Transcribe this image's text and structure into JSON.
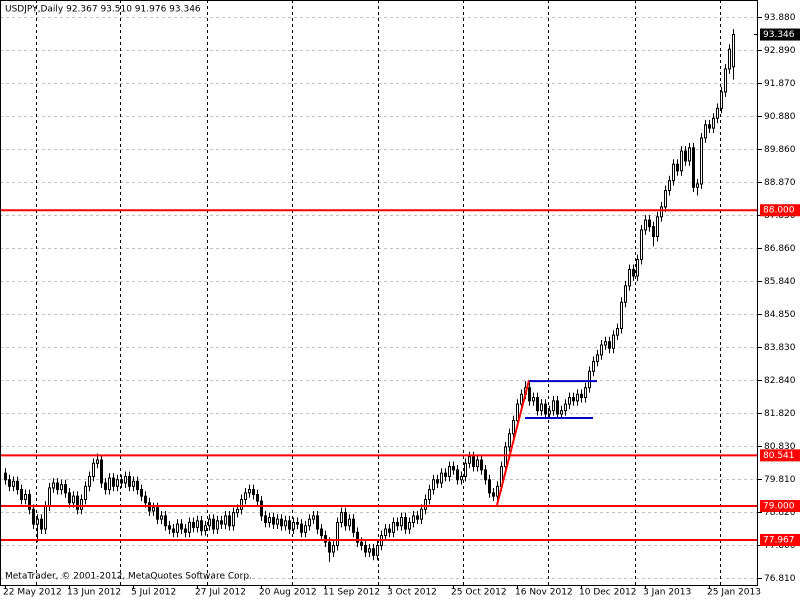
{
  "chart_data": {
    "type": "candlestick",
    "title": "USDJPY,Daily  92.367 93.510 91.976 93.346",
    "watermark": "MetaTrader, © 2001-2012, MetaQuotes Software Corp.",
    "ylim": [
      76.597,
      94.397
    ],
    "yticks": [
      {
        "value": 93.88,
        "label": "93.880"
      },
      {
        "value": 92.89,
        "label": "92.890"
      },
      {
        "value": 91.87,
        "label": "91.870"
      },
      {
        "value": 90.88,
        "label": "90.880"
      },
      {
        "value": 89.86,
        "label": "89.860"
      },
      {
        "value": 88.87,
        "label": "88.870"
      },
      {
        "value": 87.85,
        "label": "87.850"
      },
      {
        "value": 86.86,
        "label": "86.860"
      },
      {
        "value": 85.84,
        "label": "85.840"
      },
      {
        "value": 84.85,
        "label": "84.850"
      },
      {
        "value": 83.83,
        "label": "83.830"
      },
      {
        "value": 82.84,
        "label": "82.840"
      },
      {
        "value": 81.82,
        "label": "81.820"
      },
      {
        "value": 80.83,
        "label": "80.830"
      },
      {
        "value": 79.81,
        "label": "79.810"
      },
      {
        "value": 78.82,
        "label": "78.820"
      },
      {
        "value": 77.8,
        "label": "77.800"
      },
      {
        "value": 76.81,
        "label": "76.810"
      }
    ],
    "grid": true,
    "up_color": "#ffffff",
    "down_color": "#000000",
    "wick_color": "#000000",
    "hlines": [
      {
        "value": 88,
        "label": "88.000",
        "color": "#ff0000"
      },
      {
        "value": 80.541,
        "label": "80.541",
        "color": "#ff0000"
      },
      {
        "value": 79,
        "label": "79.000",
        "color": "#ff0000"
      },
      {
        "value": 77.967,
        "label": "77.967",
        "color": "#ff0000"
      }
    ],
    "current_price": {
      "value": 93.346,
      "label": "93.346"
    },
    "trendlines": [
      {
        "color": "#ff0000",
        "x": [
          123,
          131
        ],
        "y": [
          79.03,
          82.83
        ]
      },
      {
        "color": "#0000cc",
        "x": [
          131,
          148
        ],
        "y": [
          82.8,
          82.8
        ]
      },
      {
        "color": "#0000cc",
        "x": [
          130,
          147
        ],
        "y": [
          81.68,
          81.68
        ]
      }
    ],
    "categories": [
      "22 May 2012",
      null,
      null,
      null,
      null,
      null,
      null,
      null,
      null,
      null,
      null,
      null,
      null,
      null,
      null,
      null,
      "13 Jun 2012",
      null,
      null,
      null,
      null,
      null,
      null,
      null,
      null,
      null,
      null,
      null,
      null,
      null,
      null,
      null,
      "5 Jul 2012",
      null,
      null,
      null,
      null,
      null,
      null,
      null,
      null,
      null,
      null,
      null,
      null,
      null,
      null,
      null,
      "27 Jul 2012",
      null,
      null,
      null,
      null,
      null,
      null,
      null,
      null,
      null,
      null,
      null,
      null,
      null,
      null,
      null,
      "20 Aug 2012",
      null,
      null,
      null,
      null,
      null,
      null,
      null,
      null,
      null,
      null,
      null,
      null,
      null,
      null,
      null,
      "11 Sep 2012",
      null,
      null,
      null,
      null,
      null,
      null,
      null,
      null,
      null,
      null,
      null,
      null,
      null,
      null,
      null,
      "3 Oct 2012",
      null,
      null,
      null,
      null,
      null,
      null,
      null,
      null,
      null,
      null,
      null,
      null,
      null,
      null,
      null,
      "25 Oct 2012",
      null,
      null,
      null,
      null,
      null,
      null,
      null,
      null,
      null,
      null,
      null,
      null,
      null,
      null,
      null,
      "16 Nov 2012",
      null,
      null,
      null,
      null,
      null,
      null,
      null,
      null,
      null,
      null,
      null,
      null,
      null,
      null,
      null,
      "10 Dec 2012",
      null,
      null,
      null,
      null,
      null,
      null,
      null,
      null,
      null,
      null,
      null,
      null,
      null,
      null,
      null,
      "3 Jan 2013",
      null,
      null,
      null,
      null,
      null,
      null,
      null,
      null,
      null,
      null,
      null,
      null,
      null,
      null,
      null,
      "25 Jan 2013",
      null,
      null,
      null,
      null,
      null,
      null
    ],
    "candles": [
      [
        80.0,
        80.15,
        79.65,
        79.8
      ],
      [
        79.8,
        79.95,
        79.45,
        79.6
      ],
      [
        79.6,
        79.9,
        79.45,
        79.75
      ],
      [
        79.75,
        79.9,
        79.35,
        79.5
      ],
      [
        79.5,
        79.65,
        79.05,
        79.2
      ],
      [
        79.2,
        79.5,
        79.05,
        79.35
      ],
      [
        79.35,
        79.5,
        78.75,
        78.9
      ],
      [
        78.9,
        79.05,
        78.3,
        78.45
      ],
      [
        78.45,
        78.75,
        77.9,
        78.6
      ],
      [
        78.6,
        78.75,
        78.15,
        78.3
      ],
      [
        78.3,
        79.15,
        78.15,
        79.0
      ],
      [
        79.0,
        79.7,
        78.85,
        79.55
      ],
      [
        79.55,
        79.85,
        79.4,
        79.7
      ],
      [
        79.7,
        79.85,
        79.35,
        79.5
      ],
      [
        79.5,
        79.8,
        79.35,
        79.65
      ],
      [
        79.65,
        79.8,
        79.25,
        79.4
      ],
      [
        79.4,
        79.55,
        78.95,
        79.1
      ],
      [
        79.1,
        79.45,
        78.95,
        79.3
      ],
      [
        79.3,
        79.45,
        78.75,
        78.9
      ],
      [
        78.9,
        79.35,
        78.75,
        79.2
      ],
      [
        79.2,
        79.75,
        79.05,
        79.6
      ],
      [
        79.6,
        80.05,
        79.45,
        79.9
      ],
      [
        79.9,
        80.45,
        79.75,
        80.3
      ],
      [
        80.3,
        80.6,
        80.15,
        80.4
      ],
      [
        80.4,
        80.55,
        79.55,
        79.7
      ],
      [
        79.7,
        79.85,
        79.35,
        79.5
      ],
      [
        79.5,
        80.0,
        79.35,
        79.85
      ],
      [
        79.85,
        80.0,
        79.45,
        79.6
      ],
      [
        79.6,
        79.95,
        79.45,
        79.8
      ],
      [
        79.8,
        79.95,
        79.55,
        79.7
      ],
      [
        79.7,
        80.05,
        79.55,
        79.9
      ],
      [
        79.9,
        80.05,
        79.45,
        79.6
      ],
      [
        79.6,
        79.9,
        79.45,
        79.75
      ],
      [
        79.75,
        79.9,
        79.35,
        79.5
      ],
      [
        79.5,
        79.65,
        79.15,
        79.3
      ],
      [
        79.3,
        79.45,
        78.95,
        79.1
      ],
      [
        79.1,
        79.25,
        78.7,
        78.85
      ],
      [
        78.85,
        79.1,
        78.7,
        78.95
      ],
      [
        78.95,
        79.1,
        78.45,
        78.6
      ],
      [
        78.6,
        78.85,
        78.45,
        78.7
      ],
      [
        78.7,
        78.85,
        78.25,
        78.4
      ],
      [
        78.4,
        78.55,
        78.15,
        78.3
      ],
      [
        78.3,
        78.45,
        78.05,
        78.2
      ],
      [
        78.2,
        78.6,
        78.05,
        78.45
      ],
      [
        78.45,
        78.6,
        78.15,
        78.3
      ],
      [
        78.3,
        78.45,
        78.05,
        78.2
      ],
      [
        78.2,
        78.65,
        78.05,
        78.5
      ],
      [
        78.5,
        78.65,
        78.2,
        78.35
      ],
      [
        78.35,
        78.7,
        78.2,
        78.55
      ],
      [
        78.55,
        78.7,
        78.1,
        78.25
      ],
      [
        78.25,
        78.55,
        78.1,
        78.4
      ],
      [
        78.4,
        78.75,
        78.25,
        78.6
      ],
      [
        78.6,
        78.75,
        78.15,
        78.3
      ],
      [
        78.3,
        78.7,
        78.15,
        78.55
      ],
      [
        78.55,
        78.7,
        78.3,
        78.45
      ],
      [
        78.45,
        78.85,
        78.3,
        78.7
      ],
      [
        78.7,
        78.85,
        78.25,
        78.4
      ],
      [
        78.4,
        78.95,
        78.25,
        78.8
      ],
      [
        78.8,
        79.05,
        78.65,
        78.9
      ],
      [
        78.9,
        79.35,
        78.75,
        79.2
      ],
      [
        79.2,
        79.55,
        79.05,
        79.4
      ],
      [
        79.4,
        79.65,
        79.25,
        79.5
      ],
      [
        79.5,
        79.65,
        79.2,
        79.35
      ],
      [
        79.35,
        79.5,
        79.0,
        79.15
      ],
      [
        79.15,
        79.3,
        78.55,
        78.7
      ],
      [
        78.7,
        78.85,
        78.35,
        78.5
      ],
      [
        78.5,
        78.8,
        78.35,
        78.65
      ],
      [
        78.65,
        78.8,
        78.3,
        78.45
      ],
      [
        78.45,
        78.75,
        78.3,
        78.6
      ],
      [
        78.6,
        78.75,
        78.25,
        78.4
      ],
      [
        78.4,
        78.7,
        78.25,
        78.55
      ],
      [
        78.55,
        78.7,
        78.15,
        78.3
      ],
      [
        78.3,
        78.65,
        78.15,
        78.5
      ],
      [
        78.5,
        78.65,
        78.3,
        78.45
      ],
      [
        78.45,
        78.6,
        78.05,
        78.2
      ],
      [
        78.2,
        78.55,
        78.05,
        78.4
      ],
      [
        78.4,
        78.75,
        78.25,
        78.6
      ],
      [
        78.6,
        78.85,
        78.45,
        78.7
      ],
      [
        78.7,
        78.85,
        78.15,
        78.3
      ],
      [
        78.3,
        78.45,
        77.95,
        78.1
      ],
      [
        78.1,
        78.25,
        77.75,
        77.9
      ],
      [
        77.9,
        78.05,
        77.3,
        77.6
      ],
      [
        77.6,
        77.95,
        77.45,
        77.8
      ],
      [
        77.8,
        78.65,
        77.65,
        78.5
      ],
      [
        78.5,
        78.95,
        78.35,
        78.8
      ],
      [
        78.8,
        78.95,
        78.25,
        78.4
      ],
      [
        78.4,
        78.75,
        78.25,
        78.6
      ],
      [
        78.6,
        78.75,
        78.05,
        78.2
      ],
      [
        78.2,
        78.35,
        77.75,
        77.9
      ],
      [
        77.9,
        78.05,
        77.65,
        77.8
      ],
      [
        77.8,
        77.95,
        77.45,
        77.6
      ],
      [
        77.6,
        77.85,
        77.45,
        77.7
      ],
      [
        77.7,
        77.85,
        77.35,
        77.5
      ],
      [
        77.5,
        77.95,
        77.35,
        77.8
      ],
      [
        77.8,
        78.25,
        77.65,
        78.1
      ],
      [
        78.1,
        78.45,
        77.95,
        78.3
      ],
      [
        78.3,
        78.45,
        78.05,
        78.2
      ],
      [
        78.2,
        78.65,
        78.05,
        78.5
      ],
      [
        78.5,
        78.65,
        78.25,
        78.4
      ],
      [
        78.4,
        78.8,
        78.25,
        78.65
      ],
      [
        78.65,
        78.8,
        78.15,
        78.3
      ],
      [
        78.3,
        78.65,
        78.15,
        78.5
      ],
      [
        78.5,
        78.85,
        78.35,
        78.7
      ],
      [
        78.7,
        78.85,
        78.45,
        78.6
      ],
      [
        78.6,
        79.05,
        78.45,
        78.9
      ],
      [
        78.9,
        79.35,
        78.75,
        79.2
      ],
      [
        79.2,
        79.65,
        79.05,
        79.5
      ],
      [
        79.5,
        79.95,
        79.35,
        79.8
      ],
      [
        79.8,
        79.95,
        79.55,
        79.7
      ],
      [
        79.7,
        80.15,
        79.55,
        80.0
      ],
      [
        80.0,
        80.15,
        79.75,
        79.9
      ],
      [
        79.9,
        80.35,
        79.75,
        80.2
      ],
      [
        80.2,
        80.35,
        79.95,
        80.1
      ],
      [
        80.1,
        80.25,
        79.65,
        79.8
      ],
      [
        79.8,
        80.05,
        79.65,
        79.9
      ],
      [
        79.9,
        80.45,
        79.75,
        80.3
      ],
      [
        80.3,
        80.65,
        80.15,
        80.5
      ],
      [
        80.5,
        80.65,
        80.05,
        80.2
      ],
      [
        80.2,
        80.55,
        80.05,
        80.4
      ],
      [
        80.4,
        80.55,
        79.95,
        80.1
      ],
      [
        80.1,
        80.25,
        79.65,
        79.8
      ],
      [
        79.8,
        79.95,
        79.25,
        79.4
      ],
      [
        79.4,
        79.55,
        79.15,
        79.3
      ],
      [
        79.3,
        79.75,
        79.15,
        79.6
      ],
      [
        79.6,
        80.35,
        79.45,
        80.2
      ],
      [
        80.2,
        80.95,
        80.05,
        80.8
      ],
      [
        80.8,
        81.35,
        80.65,
        81.2
      ],
      [
        81.2,
        81.75,
        81.05,
        81.6
      ],
      [
        81.6,
        82.25,
        81.45,
        82.1
      ],
      [
        82.1,
        82.55,
        81.95,
        82.4
      ],
      [
        82.4,
        82.8,
        82.25,
        82.6
      ],
      [
        82.6,
        82.75,
        82.05,
        82.2
      ],
      [
        82.2,
        82.45,
        82.05,
        82.3
      ],
      [
        82.3,
        82.45,
        81.75,
        81.9
      ],
      [
        81.9,
        82.25,
        81.75,
        82.1
      ],
      [
        82.1,
        82.25,
        81.65,
        81.8
      ],
      [
        81.8,
        82.05,
        81.65,
        81.9
      ],
      [
        81.9,
        82.35,
        81.75,
        82.2
      ],
      [
        82.2,
        82.35,
        81.65,
        81.8
      ],
      [
        81.8,
        82.05,
        81.65,
        81.9
      ],
      [
        81.9,
        82.25,
        81.75,
        82.1
      ],
      [
        82.1,
        82.45,
        81.95,
        82.3
      ],
      [
        82.3,
        82.45,
        82.05,
        82.2
      ],
      [
        82.2,
        82.55,
        82.05,
        82.4
      ],
      [
        82.4,
        82.55,
        82.15,
        82.3
      ],
      [
        82.3,
        82.75,
        82.15,
        82.6
      ],
      [
        82.6,
        83.25,
        82.45,
        83.1
      ],
      [
        83.1,
        83.55,
        82.95,
        83.4
      ],
      [
        83.4,
        83.75,
        83.25,
        83.6
      ],
      [
        83.6,
        84.05,
        83.45,
        83.9
      ],
      [
        83.9,
        84.15,
        83.75,
        84.0
      ],
      [
        84.0,
        84.15,
        83.65,
        83.8
      ],
      [
        83.8,
        84.35,
        83.65,
        84.2
      ],
      [
        84.2,
        84.55,
        84.05,
        84.4
      ],
      [
        84.4,
        85.35,
        84.25,
        85.2
      ],
      [
        85.2,
        85.85,
        85.05,
        85.7
      ],
      [
        85.7,
        86.35,
        85.55,
        86.2
      ],
      [
        86.2,
        86.35,
        85.85,
        86.0
      ],
      [
        86.0,
        86.65,
        85.85,
        86.5
      ],
      [
        86.5,
        87.55,
        86.35,
        87.4
      ],
      [
        87.4,
        87.85,
        87.25,
        87.7
      ],
      [
        87.7,
        87.85,
        87.35,
        87.5
      ],
      [
        87.5,
        87.65,
        86.9,
        87.2
      ],
      [
        87.2,
        87.95,
        87.05,
        87.8
      ],
      [
        87.8,
        88.25,
        87.65,
        88.1
      ],
      [
        88.1,
        88.75,
        87.95,
        88.6
      ],
      [
        88.6,
        89.05,
        88.45,
        88.9
      ],
      [
        88.9,
        89.55,
        88.75,
        89.4
      ],
      [
        89.4,
        89.55,
        89.05,
        89.2
      ],
      [
        89.2,
        89.95,
        89.05,
        89.8
      ],
      [
        89.8,
        89.95,
        89.35,
        89.5
      ],
      [
        89.5,
        90.05,
        89.35,
        89.9
      ],
      [
        89.9,
        90.05,
        88.55,
        88.7
      ],
      [
        88.7,
        88.95,
        88.45,
        88.8
      ],
      [
        88.8,
        90.35,
        88.65,
        90.2
      ],
      [
        90.2,
        90.75,
        90.05,
        90.6
      ],
      [
        90.6,
        90.75,
        90.35,
        90.5
      ],
      [
        90.5,
        90.95,
        90.35,
        90.8
      ],
      [
        90.8,
        91.25,
        90.65,
        91.1
      ],
      [
        91.1,
        91.75,
        90.95,
        91.6
      ],
      [
        91.6,
        92.45,
        91.45,
        92.3
      ],
      [
        92.3,
        93.05,
        92.15,
        92.9
      ],
      [
        92.367,
        93.51,
        91.976,
        93.346
      ]
    ]
  }
}
